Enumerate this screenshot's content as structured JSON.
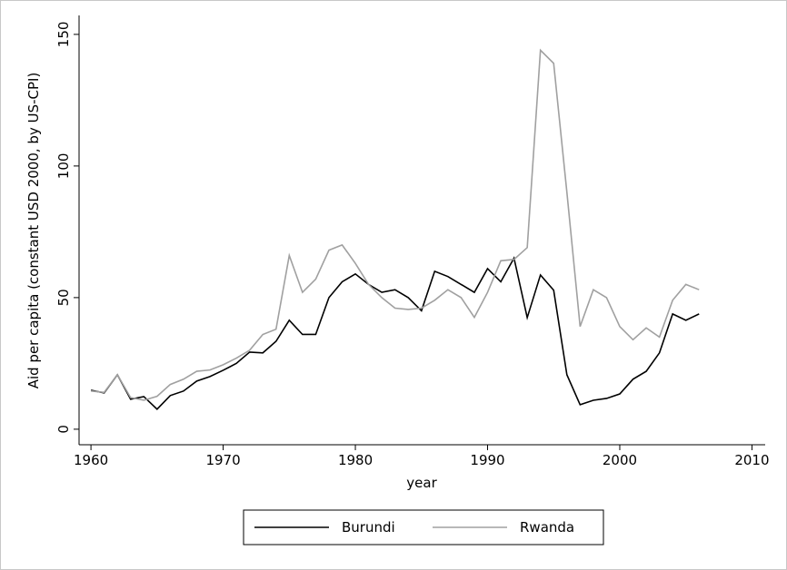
{
  "chart_data": {
    "type": "line",
    "y_label": "Aid per capita (constant USD 2000, by US-CPI)",
    "x_label": "year",
    "x": [
      1960,
      1961,
      1962,
      1963,
      1964,
      1965,
      1966,
      1967,
      1968,
      1969,
      1970,
      1971,
      1972,
      1973,
      1974,
      1975,
      1976,
      1977,
      1978,
      1979,
      1980,
      1981,
      1982,
      1983,
      1984,
      1985,
      1986,
      1987,
      1988,
      1989,
      1990,
      1991,
      1992,
      1993,
      1994,
      1995,
      1996,
      1997,
      1998,
      1999,
      2000,
      2001,
      2002,
      2003,
      2004,
      2005,
      2006
    ],
    "series": [
      {
        "name": "Burundi",
        "color": "#000000",
        "values": [
          14.8,
          13.8,
          20.7,
          11.4,
          12.4,
          7.6,
          12.8,
          14.5,
          18.3,
          20,
          22.4,
          25,
          29.3,
          29,
          33.4,
          41.4,
          36,
          36,
          50,
          56,
          59,
          55,
          52,
          53,
          50,
          45,
          60,
          58,
          55,
          52,
          61,
          56,
          65,
          42.4,
          58.6,
          52.8,
          20.7,
          9.3,
          11,
          11.7,
          13.4,
          19,
          22,
          29,
          43.8,
          41.4,
          43.8
        ]
      },
      {
        "name": "Rwanda",
        "color": "#a0a0a0",
        "values": [
          14.5,
          14,
          20.7,
          12,
          11,
          12.5,
          17,
          19,
          22,
          22.5,
          24.5,
          27,
          30,
          36,
          38,
          66,
          52,
          57,
          68,
          70,
          63,
          55,
          50,
          46,
          45.5,
          46,
          49,
          53,
          50,
          42.5,
          52,
          64,
          64.5,
          69,
          144,
          139,
          90,
          39,
          53,
          50,
          39,
          34,
          38.5,
          35,
          49,
          55,
          53
        ]
      }
    ],
    "xlim": [
      1959.1,
      2011
    ],
    "ylim": [
      -5.9,
      157.2
    ],
    "xticks": [
      1960,
      1970,
      1980,
      1990,
      2000,
      2010
    ],
    "yticks": [
      0,
      50,
      100,
      150
    ],
    "legend": "bottom"
  }
}
